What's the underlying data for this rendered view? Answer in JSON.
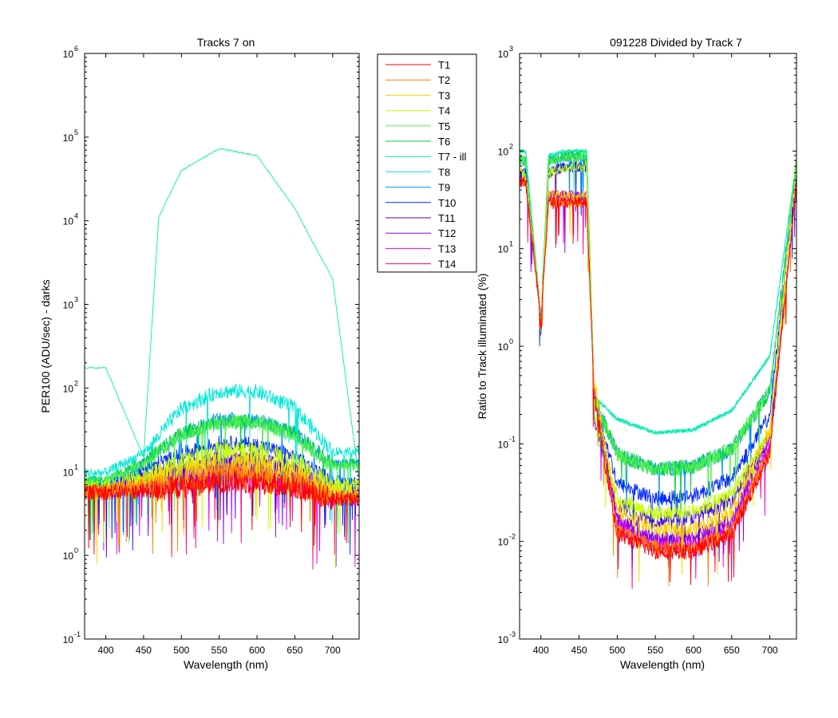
{
  "chart_data": [
    {
      "type": "line",
      "title": "Tracks 7 on",
      "xlabel": "Wavelength (nm)",
      "ylabel": "PER100  (ADU/sec) - darks",
      "xlim": [
        372,
        735
      ],
      "ylim_log10": [
        -1,
        6
      ],
      "yscale": "log",
      "grid": false,
      "xticks": [
        400,
        450,
        500,
        550,
        600,
        650,
        700
      ],
      "ytick_base": "10",
      "yticks_exp": [
        "-1",
        "0",
        "1",
        "2",
        "3",
        "4",
        "5",
        "6"
      ],
      "legend_position": "outside-right",
      "series": [
        {
          "name": "T1",
          "color": "#ff0000",
          "y_at": {
            "400": 6,
            "450": 6,
            "500": 7,
            "550": 8,
            "600": 8,
            "650": 7,
            "700": 5
          }
        },
        {
          "name": "T2",
          "color": "#ff8000",
          "y_at": {
            "400": 6,
            "450": 7,
            "500": 8,
            "550": 10,
            "600": 10,
            "650": 8,
            "700": 5
          }
        },
        {
          "name": "T3",
          "color": "#ffd000",
          "y_at": {
            "400": 6,
            "450": 8,
            "500": 10,
            "550": 13,
            "600": 13,
            "650": 10,
            "700": 6
          }
        },
        {
          "name": "T4",
          "color": "#c8ff00",
          "y_at": {
            "400": 7,
            "450": 9,
            "500": 13,
            "550": 18,
            "600": 18,
            "650": 13,
            "700": 7
          }
        },
        {
          "name": "T5",
          "color": "#50f050",
          "y_at": {
            "400": 8,
            "450": 13,
            "500": 28,
            "550": 40,
            "600": 40,
            "650": 28,
            "700": 12
          }
        },
        {
          "name": "T6",
          "color": "#00d040",
          "y_at": {
            "400": 8,
            "450": 14,
            "500": 30,
            "550": 42,
            "600": 42,
            "650": 30,
            "700": 13
          }
        },
        {
          "name": "T7 - ill",
          "color": "#00f0a0",
          "y_at": {
            "400": 175,
            "450": 15,
            "470": 11000,
            "500": 40000,
            "550": 73000,
            "600": 60000,
            "650": 14000,
            "700": 2000,
            "735": 8
          }
        },
        {
          "name": "T8",
          "color": "#00e8d8",
          "y_at": {
            "400": 10,
            "450": 17,
            "500": 60,
            "550": 95,
            "600": 95,
            "650": 60,
            "700": 18
          }
        },
        {
          "name": "T9",
          "color": "#0090ff",
          "y_at": {
            "400": 8,
            "450": 13,
            "500": 30,
            "550": 44,
            "600": 44,
            "650": 30,
            "700": 13
          }
        },
        {
          "name": "T10",
          "color": "#0028ff",
          "y_at": {
            "400": 7,
            "450": 11,
            "500": 17,
            "550": 23,
            "600": 22,
            "650": 16,
            "700": 8
          }
        },
        {
          "name": "T11",
          "color": "#4000e0",
          "y_at": {
            "400": 7,
            "450": 9,
            "500": 12,
            "550": 15,
            "600": 15,
            "650": 12,
            "700": 6
          }
        },
        {
          "name": "T12",
          "color": "#9000e0",
          "y_at": {
            "400": 6,
            "450": 8,
            "500": 10,
            "550": 12,
            "600": 12,
            "650": 10,
            "700": 5
          }
        },
        {
          "name": "T13",
          "color": "#e000ff",
          "y_at": {
            "400": 6,
            "450": 7,
            "500": 9,
            "550": 11,
            "600": 11,
            "650": 9,
            "700": 5
          }
        },
        {
          "name": "T14",
          "color": "#ff0080",
          "y_at": {
            "400": 6,
            "450": 7,
            "500": 8,
            "550": 9,
            "600": 9,
            "650": 8,
            "700": 5
          }
        }
      ]
    },
    {
      "type": "line",
      "title": "091228 Divided by Track 7",
      "xlabel": "Wavelength (nm)",
      "ylabel": "Ratio to Track illuminated (%)",
      "xlim": [
        372,
        735
      ],
      "ylim_log10": [
        -3,
        3
      ],
      "yscale": "log",
      "grid": false,
      "xticks": [
        400,
        450,
        500,
        550,
        600,
        650,
        700
      ],
      "ytick_base": "10",
      "yticks_exp": [
        "-3",
        "-2",
        "-1",
        "0",
        "1",
        "2",
        "3"
      ],
      "series_ratio_at": {
        "T1": {
          "380": 50,
          "400": 2,
          "410": 30,
          "430": 30,
          "460": 30,
          "470": 0.3,
          "500": 0.012,
          "550": 0.008,
          "600": 0.008,
          "650": 0.012,
          "700": 0.08,
          "735": 50
        },
        "T5": {
          "380": 80,
          "400": 2,
          "410": 80,
          "430": 90,
          "460": 90,
          "470": 0.3,
          "500": 0.08,
          "550": 0.055,
          "600": 0.06,
          "650": 0.09,
          "700": 0.35,
          "735": 80
        },
        "T7 - ill": {
          "380": 100,
          "400": 2,
          "410": 90,
          "430": 100,
          "460": 100,
          "470": 0.3,
          "500": 0.18,
          "550": 0.13,
          "600": 0.14,
          "650": 0.22,
          "700": 0.8,
          "735": 80
        },
        "T8": {
          "380": 100,
          "400": 2,
          "410": 90,
          "430": 100,
          "460": 100,
          "470": 0.3,
          "500": 0.18,
          "550": 0.13,
          "600": 0.14,
          "650": 0.22,
          "700": 0.8,
          "735": 80
        },
        "T9": {
          "380": 80,
          "400": 2,
          "410": 80,
          "430": 90,
          "460": 90,
          "470": 0.3,
          "500": 0.08,
          "550": 0.055,
          "600": 0.06,
          "650": 0.09,
          "700": 0.35,
          "735": 80
        },
        "T10": {
          "380": 60,
          "400": 2,
          "410": 60,
          "430": 70,
          "460": 70,
          "470": 0.3,
          "500": 0.04,
          "550": 0.028,
          "600": 0.03,
          "650": 0.045,
          "700": 0.2,
          "735": 70
        },
        "T14": {
          "380": 50,
          "400": 2,
          "410": 35,
          "430": 35,
          "460": 35,
          "470": 0.3,
          "500": 0.014,
          "550": 0.009,
          "600": 0.009,
          "650": 0.014,
          "700": 0.09,
          "735": 50
        }
      }
    }
  ]
}
